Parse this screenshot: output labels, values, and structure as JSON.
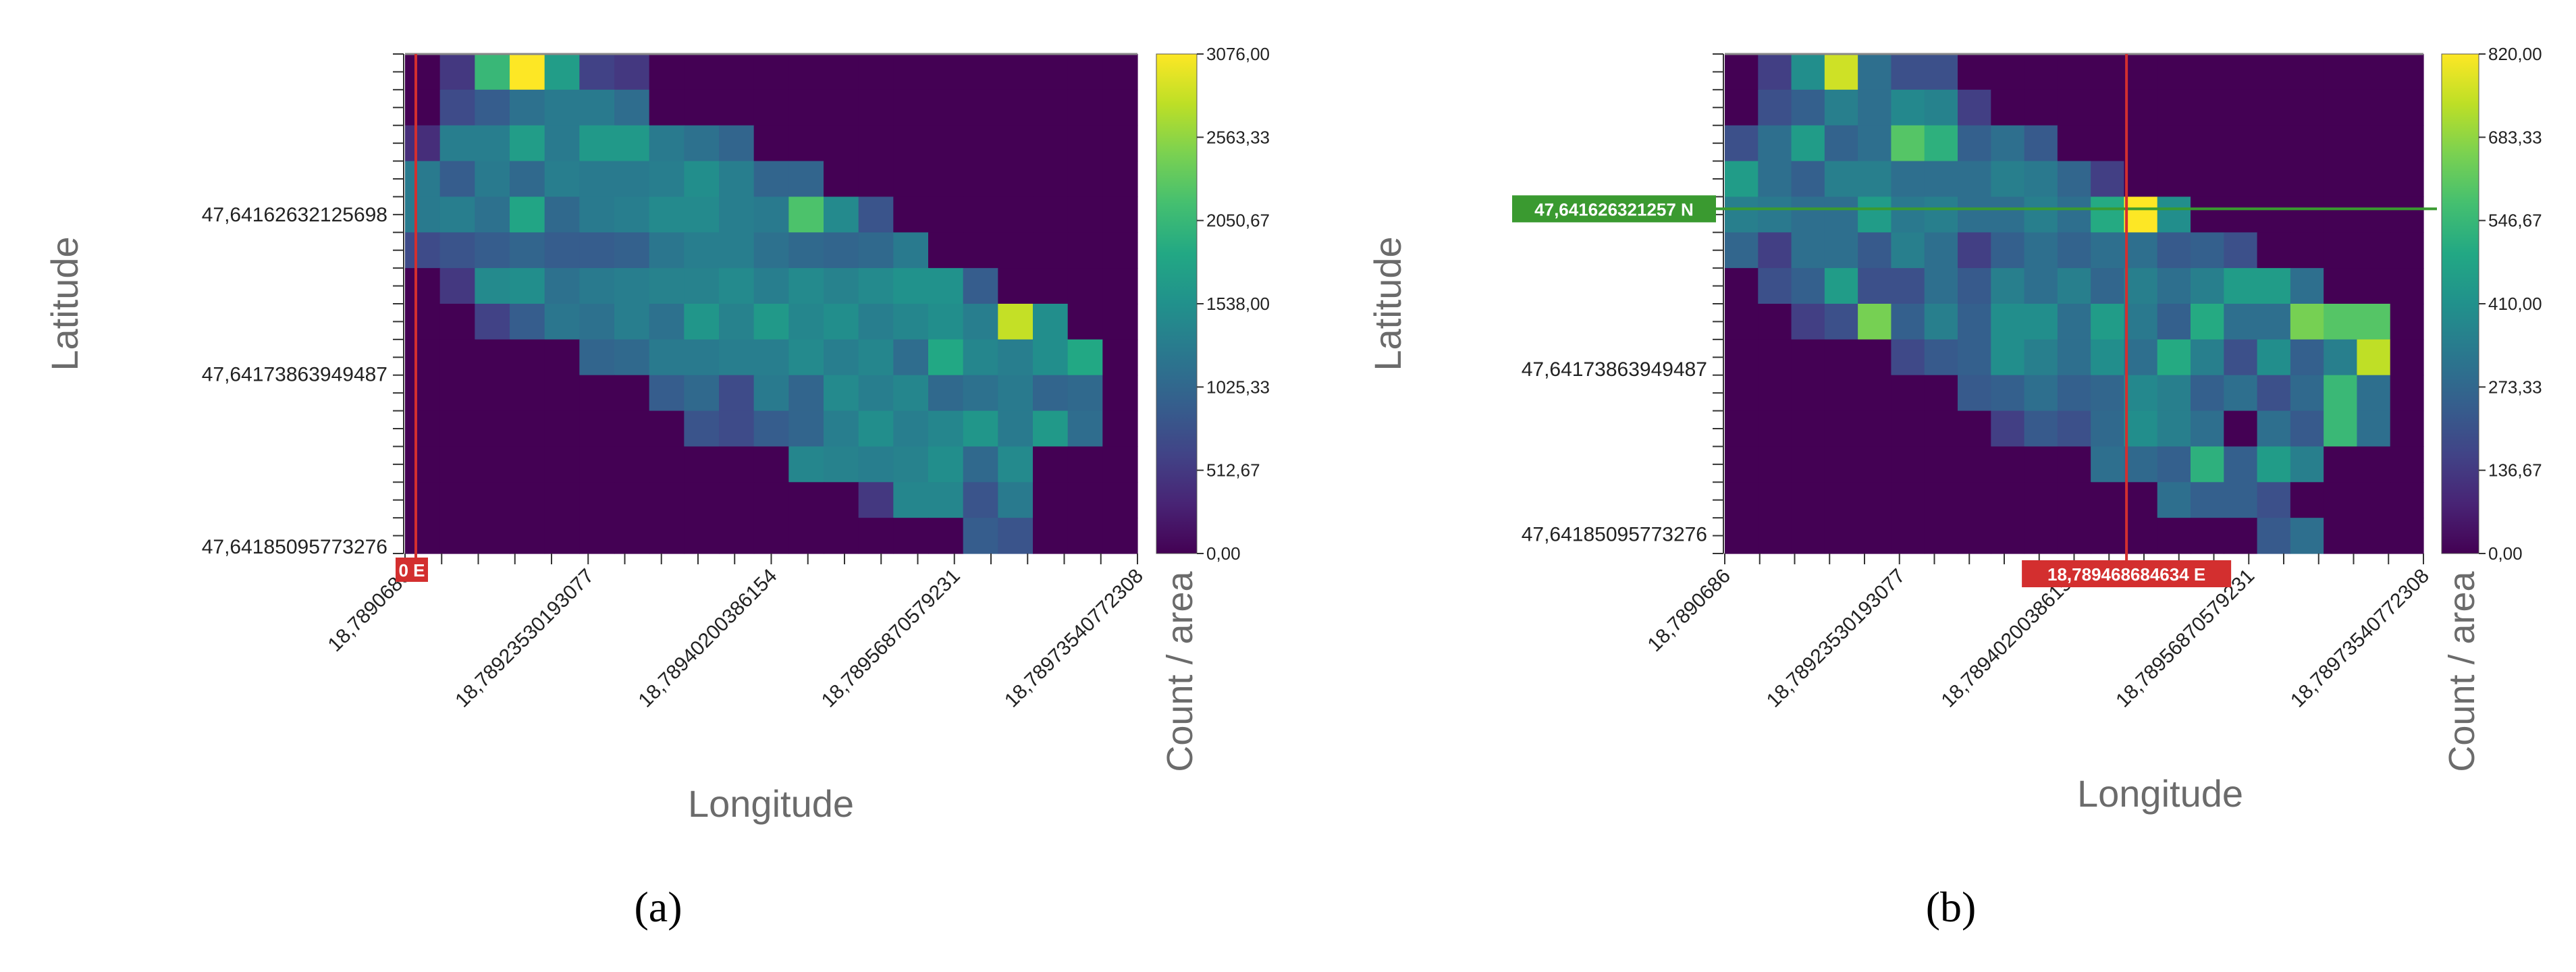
{
  "chart_data": [
    {
      "type": "heatmap",
      "panel_label": "(a)",
      "xlabel": "Longitude",
      "ylabel": "Latitude",
      "colorbar_label": "Count / area",
      "colorscale": "viridis",
      "clim": [
        0,
        3076
      ],
      "colorbar_ticks": [
        "3076,00",
        "2563,33",
        "2050,67",
        "1538,00",
        "1025,33",
        "512,67",
        "0,00"
      ],
      "x_tick_labels": [
        "18,7890686",
        "18,78923530193077",
        "18,78940200386154",
        "18,78956870579231",
        "18,78973540772308"
      ],
      "y_tick_labels": [
        "47,64162632125698",
        "47,64173863949487",
        "47,64185095773276"
      ],
      "crosshair": {
        "vertical_label": "0 E",
        "vertical_color": "#d32f2f"
      },
      "values": [
        [
          0,
          500,
          2050,
          3076,
          1700,
          600,
          500,
          0,
          0,
          0,
          0,
          0,
          0,
          0,
          0,
          0,
          0,
          0,
          0,
          0,
          0
        ],
        [
          0,
          700,
          900,
          1150,
          1250,
          1250,
          1100,
          0,
          0,
          0,
          0,
          0,
          0,
          0,
          0,
          0,
          0,
          0,
          0,
          0,
          0
        ],
        [
          400,
          1300,
          1300,
          1700,
          1250,
          1650,
          1650,
          1250,
          1150,
          1000,
          0,
          0,
          0,
          0,
          0,
          0,
          0,
          0,
          0,
          0,
          0
        ],
        [
          1250,
          900,
          1250,
          1050,
          1300,
          1250,
          1250,
          1300,
          1500,
          1300,
          1000,
          1000,
          0,
          0,
          0,
          0,
          0,
          0,
          0,
          0,
          0
        ],
        [
          1250,
          1300,
          1150,
          1800,
          1050,
          1250,
          1300,
          1450,
          1450,
          1300,
          1250,
          2200,
          1450,
          800,
          0,
          0,
          0,
          0,
          0,
          0,
          0
        ],
        [
          700,
          800,
          900,
          1000,
          900,
          900,
          950,
          1200,
          1300,
          1300,
          1150,
          1050,
          1000,
          1050,
          1250,
          0,
          0,
          0,
          0,
          0,
          0
        ],
        [
          0,
          500,
          1450,
          1500,
          1150,
          1250,
          1300,
          1350,
          1350,
          1450,
          1300,
          1450,
          1350,
          1450,
          1550,
          1550,
          900,
          0,
          0,
          0,
          0
        ],
        [
          0,
          0,
          600,
          900,
          1200,
          1150,
          1300,
          1150,
          1600,
          1350,
          1650,
          1400,
          1500,
          1300,
          1400,
          1500,
          1300,
          2800,
          1500,
          0,
          0
        ],
        [
          0,
          0,
          0,
          0,
          0,
          1000,
          1050,
          1250,
          1250,
          1300,
          1300,
          1450,
          1300,
          1400,
          1100,
          1850,
          1400,
          1300,
          1500,
          1850,
          0
        ],
        [
          0,
          0,
          0,
          0,
          0,
          0,
          0,
          900,
          1050,
          700,
          1250,
          1000,
          1450,
          1300,
          1400,
          1050,
          1150,
          1250,
          1000,
          1050,
          0
        ],
        [
          0,
          0,
          0,
          0,
          0,
          0,
          0,
          0,
          800,
          700,
          900,
          1000,
          1300,
          1500,
          1300,
          1400,
          1600,
          1250,
          1650,
          1100,
          0
        ],
        [
          0,
          0,
          0,
          0,
          0,
          0,
          0,
          0,
          0,
          0,
          0,
          1400,
          1350,
          1300,
          1350,
          1500,
          1050,
          1450,
          0,
          0,
          0
        ],
        [
          0,
          0,
          0,
          0,
          0,
          0,
          0,
          0,
          0,
          0,
          0,
          0,
          0,
          500,
          1400,
          1400,
          800,
          1250,
          0,
          0,
          0
        ],
        [
          0,
          0,
          0,
          0,
          0,
          0,
          0,
          0,
          0,
          0,
          0,
          0,
          0,
          0,
          0,
          0,
          900,
          800,
          0,
          0,
          0
        ]
      ]
    },
    {
      "type": "heatmap",
      "panel_label": "(b)",
      "xlabel": "Longitude",
      "ylabel": "Latitude",
      "colorbar_label": "Count / area",
      "colorscale": "viridis",
      "clim": [
        0,
        820
      ],
      "colorbar_ticks": [
        "820,00",
        "683,33",
        "546,67",
        "410,00",
        "273,33",
        "136,67",
        "0,00"
      ],
      "x_tick_labels": [
        "18,7890686",
        "18,78923530193077",
        "18,78940200386154",
        "18,78956870579231",
        "18,78973540772308"
      ],
      "y_tick_labels": [
        "47,64162632125698",
        "47,64173863949487",
        "47,64185095773276"
      ],
      "crosshair": {
        "horizontal_label": "47,641626321257 N",
        "horizontal_color": "#3a9a30",
        "vertical_label": "18,789468684634 E",
        "vertical_color": "#d32f2f"
      },
      "values": [
        [
          0,
          150,
          400,
          760,
          300,
          200,
          200,
          0,
          0,
          0,
          0,
          0,
          0,
          0,
          0,
          0,
          0,
          0,
          0,
          0,
          0
        ],
        [
          0,
          200,
          250,
          350,
          300,
          380,
          360,
          150,
          0,
          0,
          0,
          0,
          0,
          0,
          0,
          0,
          0,
          0,
          0,
          0,
          0
        ],
        [
          200,
          300,
          450,
          260,
          300,
          600,
          520,
          250,
          300,
          230,
          0,
          0,
          0,
          0,
          0,
          0,
          0,
          0,
          0,
          0,
          0
        ],
        [
          450,
          300,
          250,
          350,
          350,
          300,
          300,
          300,
          350,
          330,
          270,
          150,
          0,
          0,
          0,
          0,
          0,
          0,
          0,
          0,
          0
        ],
        [
          350,
          330,
          300,
          300,
          450,
          330,
          350,
          300,
          300,
          350,
          300,
          500,
          820,
          400,
          0,
          0,
          0,
          0,
          0,
          0,
          0
        ],
        [
          270,
          150,
          300,
          300,
          230,
          350,
          300,
          150,
          250,
          300,
          260,
          300,
          300,
          230,
          250,
          200,
          0,
          0,
          0,
          0,
          0
        ],
        [
          0,
          200,
          250,
          450,
          200,
          200,
          300,
          230,
          350,
          300,
          350,
          270,
          350,
          300,
          350,
          450,
          450,
          300,
          0,
          0,
          0
        ],
        [
          0,
          0,
          150,
          200,
          650,
          250,
          350,
          250,
          400,
          400,
          300,
          450,
          330,
          250,
          500,
          300,
          300,
          650,
          600,
          600,
          0
        ],
        [
          0,
          0,
          0,
          0,
          0,
          180,
          230,
          250,
          400,
          350,
          300,
          400,
          300,
          500,
          350,
          200,
          400,
          250,
          350,
          740,
          0
        ],
        [
          0,
          0,
          0,
          0,
          0,
          0,
          0,
          230,
          250,
          300,
          250,
          270,
          380,
          350,
          250,
          300,
          200,
          280,
          550,
          300,
          0
        ],
        [
          0,
          0,
          0,
          0,
          0,
          0,
          0,
          0,
          150,
          230,
          200,
          280,
          400,
          350,
          300,
          0,
          300,
          230,
          550,
          300,
          0
        ],
        [
          0,
          0,
          0,
          0,
          0,
          0,
          0,
          0,
          0,
          0,
          0,
          300,
          280,
          250,
          520,
          250,
          450,
          350,
          0,
          0,
          0
        ],
        [
          0,
          0,
          0,
          0,
          0,
          0,
          0,
          0,
          0,
          0,
          0,
          0,
          0,
          300,
          250,
          250,
          200,
          0,
          0,
          0,
          0
        ],
        [
          0,
          0,
          0,
          0,
          0,
          0,
          0,
          0,
          0,
          0,
          0,
          0,
          0,
          0,
          0,
          0,
          230,
          300,
          0,
          0,
          0
        ]
      ]
    }
  ]
}
